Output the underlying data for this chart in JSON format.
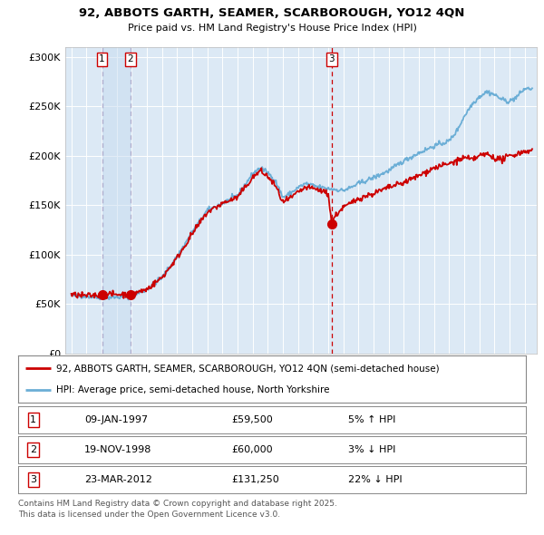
{
  "title_line1": "92, ABBOTS GARTH, SEAMER, SCARBOROUGH, YO12 4QN",
  "title_line2": "Price paid vs. HM Land Registry's House Price Index (HPI)",
  "legend_line1": "92, ABBOTS GARTH, SEAMER, SCARBOROUGH, YO12 4QN (semi-detached house)",
  "legend_line2": "HPI: Average price, semi-detached house, North Yorkshire",
  "footer_line1": "Contains HM Land Registry data © Crown copyright and database right 2025.",
  "footer_line2": "This data is licensed under the Open Government Licence v3.0.",
  "sale_labels": [
    "1",
    "2",
    "3"
  ],
  "sale_dates": [
    1997.03,
    1998.9,
    2012.23
  ],
  "sale_prices": [
    59500,
    60000,
    131250
  ],
  "sale_date_strs": [
    "09-JAN-1997",
    "19-NOV-1998",
    "23-MAR-2012"
  ],
  "sale_price_strs": [
    "£59,500",
    "£60,000",
    "£131,250"
  ],
  "sale_hpi_strs": [
    "5% ↑ HPI",
    "3% ↓ HPI",
    "22% ↓ HPI"
  ],
  "bg_color": "#dce9f5",
  "hpi_color": "#6baed6",
  "price_color": "#cc0000",
  "marker_color": "#cc0000",
  "vline_color_12": "#aaaadd",
  "vline_color_3": "#cc0000",
  "grid_color": "#ffffff",
  "shade_color": "#c8dcf0",
  "ylim": [
    0,
    310000
  ],
  "yticks": [
    0,
    50000,
    100000,
    150000,
    200000,
    250000,
    300000
  ],
  "ytick_labels": [
    "£0",
    "£50K",
    "£100K",
    "£150K",
    "£200K",
    "£250K",
    "£300K"
  ],
  "xmin": 1994.6,
  "xmax": 2025.8
}
